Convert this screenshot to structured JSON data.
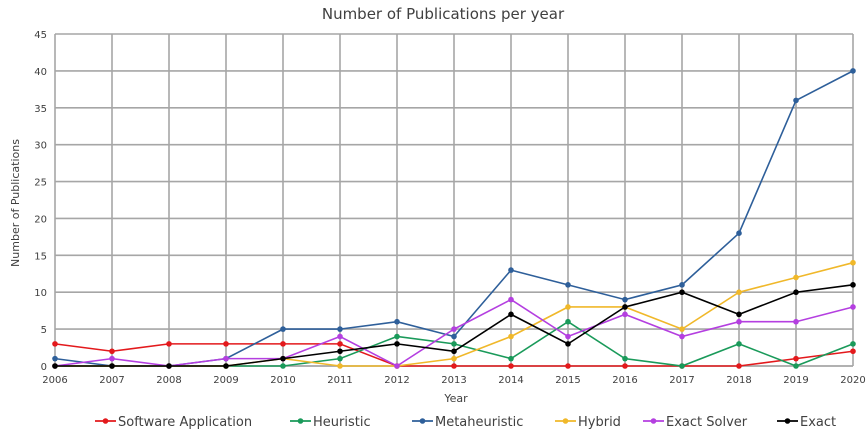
{
  "chart_data": {
    "type": "line",
    "title": "Number of Publications per year",
    "xlabel": "Year",
    "ylabel": "Number of Publications",
    "x": [
      2006,
      2007,
      2008,
      2009,
      2010,
      2011,
      2012,
      2013,
      2014,
      2015,
      2016,
      2017,
      2018,
      2019,
      2020
    ],
    "ylim": [
      0,
      45
    ],
    "yticks": [
      0,
      5,
      10,
      15,
      20,
      25,
      30,
      35,
      40,
      45
    ],
    "grid": true,
    "legend_position": "bottom",
    "series": [
      {
        "name": "Software Application",
        "color": "#e3191c",
        "values": [
          3,
          2,
          3,
          3,
          3,
          3,
          0,
          0,
          0,
          0,
          0,
          0,
          0,
          1,
          2
        ]
      },
      {
        "name": "Heuristic",
        "color": "#1a9a5a",
        "values": [
          0,
          0,
          0,
          0,
          0,
          1,
          4,
          3,
          1,
          6,
          1,
          0,
          3,
          0,
          3
        ]
      },
      {
        "name": "Metaheuristic",
        "color": "#2e5f9a",
        "values": [
          1,
          0,
          0,
          1,
          5,
          5,
          6,
          4,
          13,
          11,
          9,
          11,
          18,
          36,
          40
        ]
      },
      {
        "name": "Hybrid",
        "color": "#f0b82a",
        "values": [
          0,
          0,
          0,
          0,
          1,
          0,
          0,
          1,
          4,
          8,
          8,
          5,
          10,
          12,
          14
        ]
      },
      {
        "name": "Exact Solver",
        "color": "#b43fe0",
        "values": [
          0,
          1,
          0,
          1,
          1,
          4,
          0,
          5,
          9,
          4,
          7,
          4,
          6,
          6,
          8
        ]
      },
      {
        "name": "Exact",
        "color": "#000000",
        "values": [
          0,
          0,
          0,
          0,
          1,
          2,
          3,
          2,
          7,
          3,
          8,
          10,
          7,
          10,
          11
        ]
      }
    ]
  }
}
